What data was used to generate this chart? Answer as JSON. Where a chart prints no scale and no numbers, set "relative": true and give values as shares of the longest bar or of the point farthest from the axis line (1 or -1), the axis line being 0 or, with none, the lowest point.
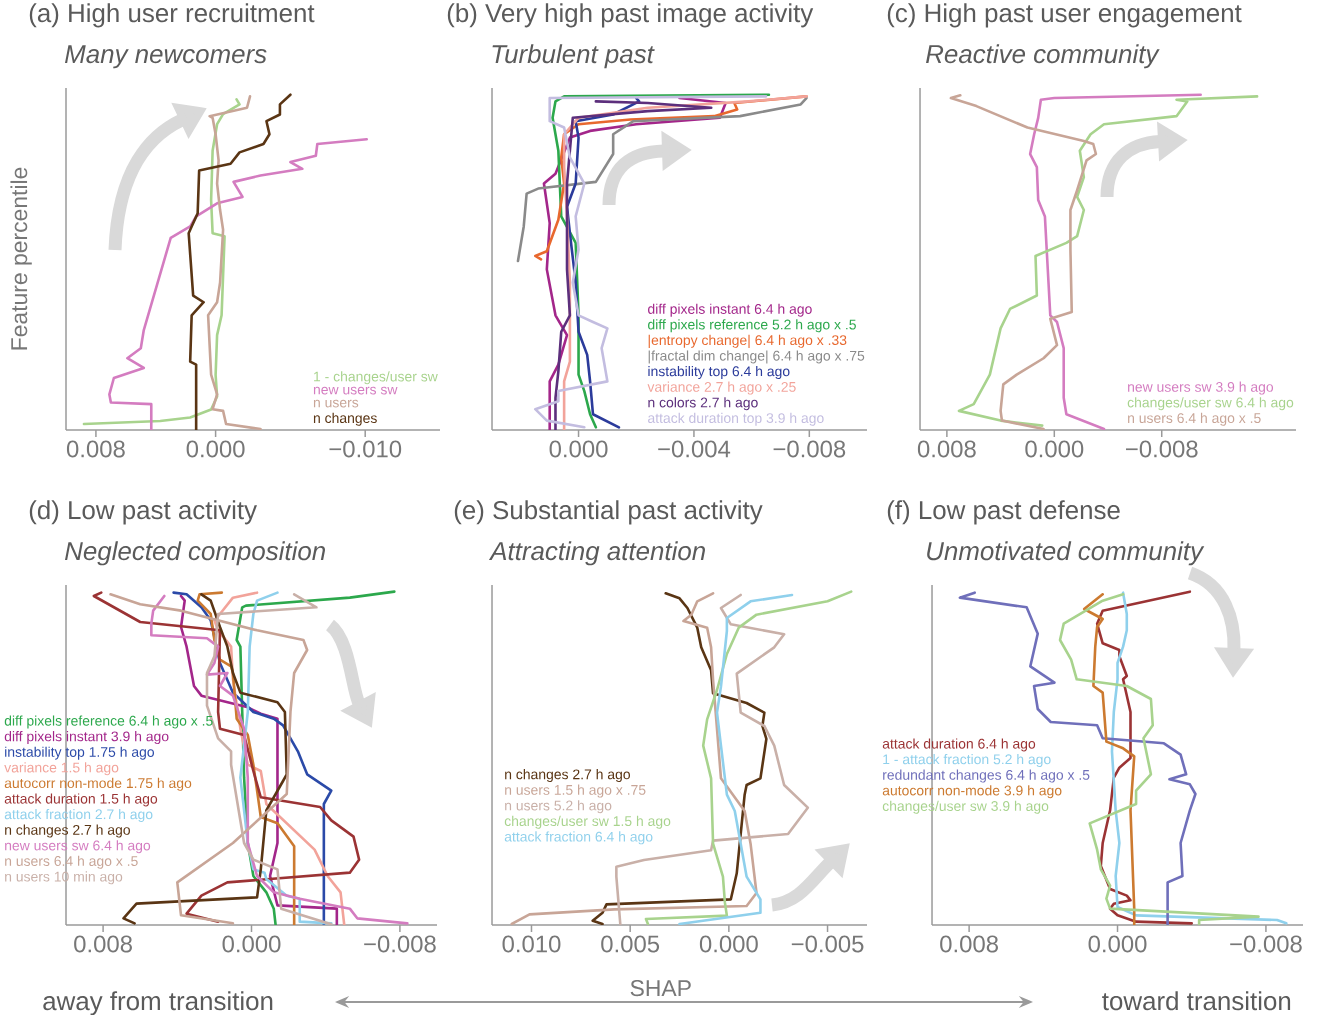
{
  "chart_data": [
    {
      "type": "line",
      "title": "(a) High user recruitment",
      "subtitle": "Many newcomers",
      "ylabel": "Feature percentile",
      "relative": true,
      "legend": "bottom right",
      "xlim": [
        0.01,
        -0.015
      ],
      "xticks": [
        {
          "value": 0.008,
          "label": "0.008"
        },
        {
          "value": 0,
          "label": "0.000"
        },
        {
          "value": -0.01,
          "label": "−0.010"
        }
      ],
      "series": [
        {
          "name": "1 - changes/user sw",
          "color": "#a8d38d",
          "x": [
            0.0088,
            0.0037,
            0.0017,
            0.0003,
            -0.0001,
            0.0,
            -0.0001,
            -0.0004,
            -0.0005,
            -0.0006,
            0.0002,
            0.0003,
            0.0002,
            -0.0001,
            -0.0005,
            -0.0016,
            -0.0014
          ],
          "values": [
            0.018,
            0.027,
            0.037,
            0.061,
            0.1,
            0.164,
            0.283,
            0.342,
            0.46,
            0.578,
            0.587,
            0.686,
            0.833,
            0.912,
            0.942,
            0.971,
            0.986
          ]
        },
        {
          "name": "new users sw",
          "color": "#d47cc0",
          "x": [
            0.0043,
            0.0043,
            0.007,
            0.0071,
            0.0068,
            0.0048,
            0.0059,
            0.005,
            0.0048,
            0.003,
            0.0017,
            0.0013,
            -0.0001,
            -0.0018,
            -0.0012,
            -0.003,
            -0.0058,
            -0.005,
            -0.0067,
            -0.0068,
            -0.0101
          ],
          "values": [
            0,
            0.077,
            0.082,
            0.106,
            0.155,
            0.185,
            0.214,
            0.244,
            0.298,
            0.573,
            0.607,
            0.637,
            0.676,
            0.695,
            0.74,
            0.759,
            0.779,
            0.799,
            0.818,
            0.853,
            0.867
          ]
        },
        {
          "name": "n users",
          "color": "#c8a597",
          "x": [
            -0.003,
            -0.0007,
            -0.0005,
            0.0002,
            -0.0001,
            0.0003,
            0.0005,
            -0.0001,
            -0.0003,
            -0.0005,
            -0.0003,
            -0.0001,
            -0.0002,
            0.0,
            0.0002,
            0.0004,
            -0.0021,
            -0.0023
          ],
          "values": [
            0.003,
            0.018,
            0.057,
            0.062,
            0.106,
            0.165,
            0.342,
            0.381,
            0.44,
            0.597,
            0.656,
            0.735,
            0.804,
            0.882,
            0.931,
            0.936,
            0.961,
            0.995
          ]
        },
        {
          "name": "n changes",
          "color": "#5a3514",
          "x": [
            0.0013,
            0.0013,
            0.0017,
            0.0016,
            0.0008,
            0.0015,
            0.0018,
            0.0016,
            0.0012,
            0.0011,
            -0.001,
            -0.0016,
            -0.0032,
            -0.0036,
            -0.0034,
            -0.0043,
            -0.0043,
            -0.005
          ],
          "values": [
            0,
            0.195,
            0.204,
            0.342,
            0.381,
            0.401,
            0.587,
            0.607,
            0.646,
            0.774,
            0.794,
            0.828,
            0.853,
            0.882,
            0.921,
            0.941,
            0.971,
            1.0
          ]
        }
      ]
    },
    {
      "type": "line",
      "title": "(b) Very high past image activity",
      "subtitle": "Turbulent past",
      "relative": true,
      "legend": "bottom right",
      "xlim": [
        0.003,
        -0.01
      ],
      "xticks": [
        {
          "value": 0,
          "label": "0.000"
        },
        {
          "value": -0.004,
          "label": "−0.004"
        },
        {
          "value": -0.008,
          "label": "−0.008"
        }
      ],
      "series": [
        {
          "name": "diff pixels instant 6.4 h ago",
          "color": "#a3268a",
          "x": [
            0.001,
            0.001,
            0.0007,
            0.0004,
            0.0008,
            0.0011,
            0.001,
            0.0012,
            0.0008,
            0.0003,
            -0.0004,
            -0.002,
            -0.0049,
            -0.0051,
            -0.0035
          ],
          "values": [
            0,
            0.145,
            0.195,
            0.283,
            0.342,
            0.479,
            0.617,
            0.735,
            0.764,
            0.872,
            0.892,
            0.912,
            0.931,
            0.975,
            0.99
          ]
        },
        {
          "name": "diff pixels reference 5.2 h ago x .5",
          "color": "#2ca84c",
          "x": [
            -0.0006,
            -0.0004,
            -0.0002,
            0.0,
            0.0,
            0.0001,
            0.0006,
            0.0007,
            0.0009,
            0.0008,
            0.0005,
            -0.0066
          ],
          "values": [
            0.008,
            0.047,
            0.116,
            0.165,
            0.342,
            0.558,
            0.637,
            0.833,
            0.931,
            0.98,
            0.995,
            1.0
          ]
        },
        {
          "name": "|entropy change| 6.4 h ago x .33",
          "color": "#e8682e",
          "x": [
            0.0013,
            0.0015,
            0.0011,
            0.0007,
            0.0005,
            0.0006,
            0.0005,
            0.0,
            -0.0018,
            -0.0047,
            -0.0055,
            -0.0054,
            -0.0079
          ],
          "values": [
            0.509,
            0.519,
            0.533,
            0.627,
            0.735,
            0.813,
            0.882,
            0.912,
            0.926,
            0.936,
            0.956,
            0.975,
            0.995
          ]
        },
        {
          "name": "|fractal dim change| 6.4 h ago x .75",
          "color": "#8a8a8a",
          "x": [
            0.0021,
            0.0019,
            0.0018,
            0.0014,
            -0.0006,
            -0.0012,
            -0.0012,
            -0.0019,
            -0.0056,
            -0.0077,
            -0.0079
          ],
          "values": [
            0.504,
            0.607,
            0.705,
            0.72,
            0.74,
            0.823,
            0.882,
            0.921,
            0.936,
            0.971,
            0.99
          ]
        },
        {
          "name": "instability top 6.4 h ago",
          "color": "#2b3b9b",
          "x": [
            -0.0014,
            -0.0005,
            -0.0004,
            -0.0003,
            0.0,
            0.0001,
            0.0003,
            0.0004,
            0.0001,
            0.0,
            0.0001,
            -0.0012,
            -0.0021,
            -0.002
          ],
          "values": [
            0.008,
            0.047,
            0.145,
            0.224,
            0.293,
            0.44,
            0.587,
            0.666,
            0.735,
            0.872,
            0.921,
            0.941,
            0.98,
            0.99
          ]
        },
        {
          "name": "variance 2.7 h ago x .25",
          "color": "#f2a39a",
          "x": [
            0.0005,
            0.0005,
            0.0003,
            0.0003,
            0.0004,
            0.0005,
            0.0005,
            0.0,
            -0.0024,
            -0.0059,
            -0.0079
          ],
          "values": [
            0,
            0.145,
            0.204,
            0.44,
            0.637,
            0.784,
            0.882,
            0.931,
            0.961,
            0.98,
            0.995
          ]
        },
        {
          "name": "n colors 2.7 h ago",
          "color": "#5c2f7c",
          "x": [
            0.0008,
            0.0008,
            0.0007,
            0.0006,
            0.0003,
            0.0004,
            0.0004,
            0.0003,
            0.0002,
            -0.0024,
            -0.0046,
            -0.0024,
            -0.0006
          ],
          "values": [
            0,
            0.096,
            0.175,
            0.293,
            0.342,
            0.479,
            0.735,
            0.833,
            0.931,
            0.951,
            0.961,
            0.975,
            0.98
          ]
        },
        {
          "name": "attack duration top 3.9 h ago",
          "color": "#c3bde0",
          "x": [
            -0.0002,
            0.0011,
            0.0015,
            0.0007,
            0.0007,
            -0.001,
            -0.0008,
            -0.001,
            -0.0005,
            0.0,
            0.0002,
            0.0,
            0.0001,
            -0.0002,
            0.0003,
            0.0005,
            0.001,
            0.001,
            -0.0065
          ],
          "values": [
            0.008,
            0.028,
            0.062,
            0.086,
            0.116,
            0.145,
            0.244,
            0.303,
            0.322,
            0.342,
            0.44,
            0.538,
            0.637,
            0.735,
            0.813,
            0.902,
            0.921,
            0.99,
            0.995
          ]
        }
      ]
    },
    {
      "type": "line",
      "title": "(c) High past user engagement",
      "subtitle": "Reactive community",
      "relative": true,
      "legend": "bottom right",
      "xlim": [
        0.01,
        -0.018
      ],
      "xticks": [
        {
          "value": 0.008,
          "label": "0.008"
        },
        {
          "value": 0,
          "label": "0.000"
        },
        {
          "value": -0.008,
          "label": "−0.008"
        }
      ],
      "series": [
        {
          "name": "new users sw 3.9 h ago",
          "color": "#d47cc0",
          "x": [
            -0.0037,
            -0.0009,
            -0.0007,
            -0.0007,
            -0.0002,
            0.0003,
            0.0005,
            0.0007,
            0.0012,
            0.0013,
            0.0018,
            0.0015,
            0.0012,
            0.001,
            0.0,
            -0.0109
          ],
          "values": [
            0.003,
            0.047,
            0.096,
            0.244,
            0.322,
            0.342,
            0.489,
            0.637,
            0.686,
            0.784,
            0.823,
            0.882,
            0.931,
            0.985,
            0.99,
            1.0
          ]
        },
        {
          "name": "changes/user sw 6.4 h ago",
          "color": "#a8d38d",
          "x": [
            0.0009,
            0.004,
            0.0071,
            0.006,
            0.0048,
            0.004,
            0.0033,
            0.0013,
            0.0014,
            -0.0009,
            -0.0017,
            -0.0022,
            -0.0017,
            -0.0022,
            -0.0019,
            -0.0027,
            -0.0037,
            -0.0091,
            -0.0099,
            -0.0091,
            -0.0151
          ],
          "values": [
            0.013,
            0.028,
            0.057,
            0.077,
            0.165,
            0.303,
            0.361,
            0.401,
            0.519,
            0.558,
            0.578,
            0.656,
            0.695,
            0.754,
            0.833,
            0.882,
            0.912,
            0.936,
            0.98,
            0.985,
            0.995
          ]
        },
        {
          "name": "n users 6.4 h ago x .5",
          "color": "#c8a597",
          "x": [
            0.0008,
            0.0039,
            0.004,
            0.0038,
            0.0028,
            0.0008,
            -0.0002,
            0.0003,
            -0.0013,
            -0.0012,
            -0.0012,
            -0.0017,
            -0.0024,
            -0.0031,
            -0.0029,
            -0.0022,
            0.002,
            0.0058,
            0.0077,
            0.007
          ],
          "values": [
            0.003,
            0.028,
            0.057,
            0.136,
            0.165,
            0.214,
            0.253,
            0.332,
            0.352,
            0.538,
            0.656,
            0.715,
            0.804,
            0.823,
            0.853,
            0.862,
            0.902,
            0.966,
            0.99,
            0.998
          ]
        }
      ]
    },
    {
      "type": "line",
      "title": "(d) Low past activity",
      "subtitle": "Neglected composition",
      "relative": true,
      "legend": "left",
      "xlim": [
        0.01,
        -0.01
      ],
      "xticks": [
        {
          "value": 0.008,
          "label": "0.008"
        },
        {
          "value": 0,
          "label": "0.000"
        },
        {
          "value": -0.008,
          "label": "−0.008"
        }
      ],
      "series": [
        {
          "name": "diff pixels reference 6.4 h ago x .5",
          "color": "#2ca84c",
          "x": [
            -0.0013,
            -0.0012,
            -0.0008,
            -0.0001,
            0.0002,
            0.0004,
            0.0005,
            0.0006,
            0.0008,
            0.0005,
            0.0003,
            -0.0053,
            -0.0077
          ],
          "values": [
            0,
            0.049,
            0.098,
            0.147,
            0.246,
            0.442,
            0.639,
            0.835,
            0.855,
            0.953,
            0.958,
            0.982,
            1.0
          ]
        },
        {
          "name": "diff pixels instant 3.9 h ago",
          "color": "#a3268a",
          "x": [
            -0.0046,
            -0.0046,
            -0.0014,
            -0.001,
            -0.0014,
            -0.0014,
            -0.0005,
            0.0002,
            0.0027,
            0.0031,
            0.0035,
            0.0038,
            0.0036,
            0.0038
          ],
          "values": [
            0,
            0.049,
            0.059,
            0.147,
            0.246,
            0.619,
            0.634,
            0.653,
            0.688,
            0.717,
            0.835,
            0.894,
            0.973,
            0.987
          ]
        },
        {
          "name": "instability top 1.75 h ago",
          "color": "#2b4aa8",
          "x": [
            -0.0039,
            -0.0039,
            -0.0043,
            -0.003,
            -0.0025,
            -0.0017,
            -0.0012,
            -0.0001,
            0.001,
            0.0017,
            0.0022,
            0.0027,
            0.0035,
            0.0042
          ],
          "values": [
            0,
            0.363,
            0.403,
            0.452,
            0.521,
            0.599,
            0.619,
            0.639,
            0.697,
            0.786,
            0.914,
            0.953,
            0.992,
            0.997
          ]
        },
        {
          "name": "variance 1.5 h ago",
          "color": "#f2a39a",
          "x": [
            -0.005,
            -0.0048,
            -0.0041,
            -0.0034,
            -0.0008,
            -0.0005,
            0.0002,
            0.0006,
            0.001,
            0.0011,
            0.0018,
            0.002,
            0.0017,
            0.001,
            -0.0003
          ],
          "values": [
            0,
            0.098,
            0.147,
            0.226,
            0.363,
            0.462,
            0.481,
            0.589,
            0.737,
            0.835,
            0.884,
            0.914,
            0.933,
            0.982,
            0.997
          ]
        },
        {
          "name": "autocorr non-mode 1.75 h ago",
          "color": "#cc7a30",
          "x": [
            -0.0023,
            -0.0023,
            -0.0014,
            -0.0005,
            -0.0003,
            -0.0001,
            0.0002,
            0.0008,
            0.001,
            0.0011,
            0.0017,
            0.002,
            0.0022,
            0.0029,
            0.0028,
            0.0016
          ],
          "values": [
            0,
            0.236,
            0.305,
            0.324,
            0.403,
            0.481,
            0.57,
            0.619,
            0.756,
            0.776,
            0.796,
            0.855,
            0.933,
            0.973,
            0.992,
            0.997
          ]
        },
        {
          "name": "attack duration 1.5 h ago",
          "color": "#9b3334",
          "x": [
            0.0018,
            0.0035,
            0.0027,
            0.0013,
            -0.0053,
            -0.0058,
            -0.0055,
            -0.0043,
            -0.0037,
            -0.0005,
            -0.0001,
            0.0004,
            0.0017,
            0.0018,
            0.0017,
            0.006,
            0.0085,
            0.0081
          ],
          "values": [
            0.01,
            0.034,
            0.088,
            0.128,
            0.157,
            0.196,
            0.265,
            0.314,
            0.354,
            0.383,
            0.462,
            0.57,
            0.589,
            0.639,
            0.884,
            0.909,
            0.987,
            0.997
          ]
        },
        {
          "name": "attack fraction 2.7 h ago",
          "color": "#8fd0ec",
          "x": [
            -0.0043,
            -0.0026,
            -0.0026,
            -0.0019,
            -0.0008,
            -0.0007,
            -0.0001,
            0.0002,
            0.0006,
            0.0004,
            0.0002,
            0.0001,
            -0.0001,
            -0.0003,
            -0.0014
          ],
          "values": [
            0.005,
            0.01,
            0.079,
            0.088,
            0.138,
            0.157,
            0.167,
            0.246,
            0.442,
            0.54,
            0.639,
            0.835,
            0.933,
            0.973,
            0.997
          ]
        },
        {
          "name": "n changes 2.7 h ago",
          "color": "#5a3514",
          "x": [
            0.0063,
            0.0069,
            0.0062,
            -0.0003,
            -0.0005,
            -0.0008,
            -0.0017,
            -0.0019,
            -0.0018,
            -0.0014,
            0.0006,
            0.001,
            0.0013,
            0.0017,
            0.0022,
            0.0027
          ],
          "values": [
            0.005,
            0.02,
            0.064,
            0.083,
            0.167,
            0.344,
            0.432,
            0.452,
            0.639,
            0.668,
            0.697,
            0.756,
            0.835,
            0.894,
            0.973,
            0.992
          ]
        },
        {
          "name": "new users sw 6.4 h ago",
          "color": "#d47cc0",
          "x": [
            -0.0084,
            -0.0057,
            -0.0053,
            -0.0026,
            -0.0012,
            -0.0003,
            0.0002,
            0.0002,
            0.0004,
            0.001,
            0.0017,
            0.0013,
            0.0024,
            0.002,
            0.0018,
            0.0024,
            0.0054,
            0.0054,
            0.0053,
            0.0047
          ],
          "values": [
            0.005,
            0.02,
            0.049,
            0.079,
            0.098,
            0.147,
            0.246,
            0.442,
            0.589,
            0.688,
            0.717,
            0.756,
            0.751,
            0.786,
            0.835,
            0.86,
            0.869,
            0.904,
            0.943,
            0.987
          ]
        },
        {
          "name": "n users 6.4 h ago x .5",
          "color": "#c8a597",
          "x": [
            0.001,
            0.0038,
            0.004,
            0.001,
            -0.0019,
            -0.0021,
            -0.0023,
            -0.003,
            -0.0028,
            -0.0003,
            0.0038,
            0.006,
            0.0076
          ],
          "values": [
            0.005,
            0.029,
            0.128,
            0.246,
            0.393,
            0.639,
            0.756,
            0.825,
            0.855,
            0.884,
            0.943,
            0.962,
            0.992
          ]
        },
        {
          "name": "n users 10 min ago",
          "color": "#c9b0a8",
          "x": [
            -0.0043,
            -0.0016,
            -0.0014,
            -0.0001,
            0.0004,
            0.0011,
            0.0011,
            0.0018,
            0.0024,
            0.0024,
            0.002,
            0.0018,
            -0.0035,
            -0.0023
          ],
          "values": [
            0.002,
            0.049,
            0.167,
            0.196,
            0.246,
            0.481,
            0.521,
            0.56,
            0.658,
            0.756,
            0.806,
            0.933,
            0.953,
            0.992
          ]
        }
      ]
    },
    {
      "type": "line",
      "title": "(e) Substantial past activity",
      "subtitle": "Attracting attention",
      "xlabel": "SHAP",
      "relative": true,
      "legend": "left",
      "annotations": [
        "away from transition",
        "toward transition"
      ],
      "xlim": [
        0.012,
        -0.007
      ],
      "xticks": [
        {
          "value": 0.01,
          "label": "0.010"
        },
        {
          "value": 0.005,
          "label": "0.005"
        },
        {
          "value": 0,
          "label": "0.000"
        },
        {
          "value": -0.005,
          "label": "−0.005"
        }
      ],
      "series": [
        {
          "name": "n changes 2.7 h ago",
          "color": "#5a3514",
          "x": [
            0.0064,
            0.0069,
            0.0064,
            0.0062,
            -0.0001,
            -0.0004,
            -0.0008,
            -0.0009,
            -0.0016,
            -0.0019,
            -0.0017,
            -0.0018,
            -0.0009,
            0.0008,
            0.0009,
            0.0014,
            0.0016,
            0.0021,
            0.0025,
            0.0032
          ],
          "values": [
            0.003,
            0.013,
            0.037,
            0.062,
            0.077,
            0.155,
            0.391,
            0.42,
            0.44,
            0.558,
            0.597,
            0.637,
            0.666,
            0.695,
            0.764,
            0.833,
            0.892,
            0.951,
            0.98,
            0.995
          ]
        },
        {
          "name": "n users 1.5 h ago x .75",
          "color": "#c8a597",
          "x": [
            0.011,
            0.0101,
            0.0058,
            -0.0009,
            -0.0014,
            -0.0011,
            -0.0008,
            0.0004,
            0.0008,
            0.0009,
            0.0011,
            0.0023,
            0.0019,
            0.0016,
            0.0008
          ],
          "values": [
            0.003,
            0.032,
            0.047,
            0.057,
            0.096,
            0.244,
            0.342,
            0.44,
            0.735,
            0.833,
            0.892,
            0.912,
            0.931,
            0.971,
            0.995
          ]
        },
        {
          "name": "n users 5.2 h ago",
          "color": "#c9b0a8",
          "x": [
            0.0055,
            0.0057,
            0.0057,
            0.0043,
            0.0009,
            0.0008,
            -0.003,
            -0.004,
            -0.0028,
            -0.0023,
            -0.0018,
            -0.0006,
            -0.0004,
            -0.0016,
            -0.0023,
            -0.0028,
            -0.0001,
            0.0004,
            -0.0006
          ],
          "values": [
            0.003,
            0.145,
            0.175,
            0.195,
            0.224,
            0.253,
            0.273,
            0.352,
            0.42,
            0.538,
            0.597,
            0.637,
            0.754,
            0.804,
            0.833,
            0.872,
            0.902,
            0.951,
            0.99
          ]
        },
        {
          "name": "changes/user sw 1.5 h ago",
          "color": "#a8d38d",
          "x": [
            0.0041,
            0.0042,
            0.0001,
            0.0002,
            0.0003,
            0.0008,
            0.0009,
            0.0013,
            0.0011,
            0.0006,
            0.0001,
            -0.0005,
            -0.0014,
            -0.005,
            -0.0062
          ],
          "values": [
            0.003,
            0.018,
            0.028,
            0.067,
            0.145,
            0.244,
            0.44,
            0.538,
            0.617,
            0.705,
            0.813,
            0.892,
            0.931,
            0.971,
            1.0
          ]
        },
        {
          "name": "attack fraction 6.4 h ago",
          "color": "#8fd0ec",
          "x": [
            0.0025,
            -0.0016,
            -0.0016,
            -0.0009,
            -0.0006,
            -0.0003,
            0.0001,
            0.0004,
            0.0006,
            0.0004,
            0.0001,
            0.0001,
            -0.0011,
            -0.0032
          ],
          "values": [
            0.003,
            0.037,
            0.077,
            0.145,
            0.244,
            0.342,
            0.391,
            0.538,
            0.637,
            0.715,
            0.882,
            0.921,
            0.971,
            0.99
          ]
        }
      ]
    },
    {
      "type": "line",
      "title": "(f) Low past defense",
      "subtitle": "Unmotivated community",
      "relative": true,
      "legend": "left",
      "xlim": [
        0.01,
        -0.01
      ],
      "xticks": [
        {
          "value": 0.008,
          "label": "0.008"
        },
        {
          "value": 0,
          "label": "0.000"
        },
        {
          "value": -0.008,
          "label": "−0.008"
        }
      ],
      "series": [
        {
          "name": "attack duration 6.4 h ago",
          "color": "#9b3334",
          "x": [
            -0.004,
            -0.001,
            0.0,
            0.0004,
            0.0002,
            -0.0007,
            -0.0005,
            0.0004,
            0.0009,
            0.0008,
            0.0004,
            0.0002,
            -0.0001,
            -0.0007,
            -0.0007,
            -0.0003,
            -0.0005,
            -0.0001,
            -0.0001,
            0.0008,
            0.0011,
            0.0008,
            -0.0039
          ],
          "values": [
            0.005,
            0.01,
            0.029,
            0.049,
            0.064,
            0.074,
            0.088,
            0.108,
            0.177,
            0.246,
            0.344,
            0.442,
            0.472,
            0.501,
            0.639,
            0.737,
            0.747,
            0.806,
            0.825,
            0.845,
            0.904,
            0.943,
            1.0
          ]
        },
        {
          "name": "1 - attack fraction 5.2 h ago",
          "color": "#8fd0ec",
          "x": [
            -0.0091,
            -0.0086,
            -0.001,
            0.0,
            0.0001,
            -0.0001,
            0.0001,
            0.0003,
            0.0002,
            0.0,
            0.0,
            -0.0003,
            -0.0005,
            -0.0005,
            -0.0003
          ],
          "values": [
            0.005,
            0.015,
            0.029,
            0.054,
            0.147,
            0.246,
            0.344,
            0.521,
            0.639,
            0.737,
            0.786,
            0.835,
            0.884,
            0.933,
            0.997
          ]
        },
        {
          "name": "redundant changes 6.4 h ago x .5",
          "color": "#6f6fba",
          "x": [
            -0.0027,
            -0.0027,
            -0.0035,
            -0.0034,
            -0.0039,
            -0.0042,
            -0.0039,
            -0.0028,
            -0.0037,
            -0.0034,
            -0.0025,
            0.0008,
            0.0011,
            0.0036,
            0.0043,
            0.0045,
            0.0034,
            0.0047,
            0.0043,
            0.0049,
            0.0085,
            0.0077
          ],
          "values": [
            0.002,
            0.128,
            0.147,
            0.246,
            0.344,
            0.393,
            0.422,
            0.437,
            0.452,
            0.511,
            0.545,
            0.56,
            0.599,
            0.609,
            0.648,
            0.717,
            0.727,
            0.776,
            0.874,
            0.953,
            0.982,
            0.997
          ]
        },
        {
          "name": "autocorr non-mode 3.9 h ago",
          "color": "#cc7a30",
          "x": [
            -0.0009,
            -0.0009,
            -0.0007,
            -0.0009,
            -0.0003,
            0.0006,
            0.0008,
            0.0013,
            0.0012,
            0.0011,
            0.0008,
            0.0018,
            0.0008
          ],
          "values": [
            0.002,
            0.049,
            0.344,
            0.506,
            0.53,
            0.55,
            0.697,
            0.717,
            0.835,
            0.894,
            0.918,
            0.948,
            0.992
          ]
        },
        {
          "name": "changes/user sw 3.9 h ago",
          "color": "#a8d38d",
          "x": [
            -0.0044,
            -0.0044,
            -0.0076,
            0.0004,
            0.0006,
            0.0004,
            0.0009,
            0.0011,
            0.0015,
            -0.001,
            -0.001,
            -0.0018,
            -0.0014,
            -0.0019,
            -0.0018,
            -0.0005,
            0.0022,
            0.0025,
            0.0031,
            0.0029,
            0.0008,
            -0.0003
          ],
          "values": [
            0.002,
            0.015,
            0.025,
            0.049,
            0.079,
            0.118,
            0.167,
            0.226,
            0.305,
            0.363,
            0.403,
            0.452,
            0.56,
            0.599,
            0.678,
            0.717,
            0.737,
            0.796,
            0.855,
            0.904,
            0.973,
            0.992
          ]
        }
      ]
    }
  ]
}
